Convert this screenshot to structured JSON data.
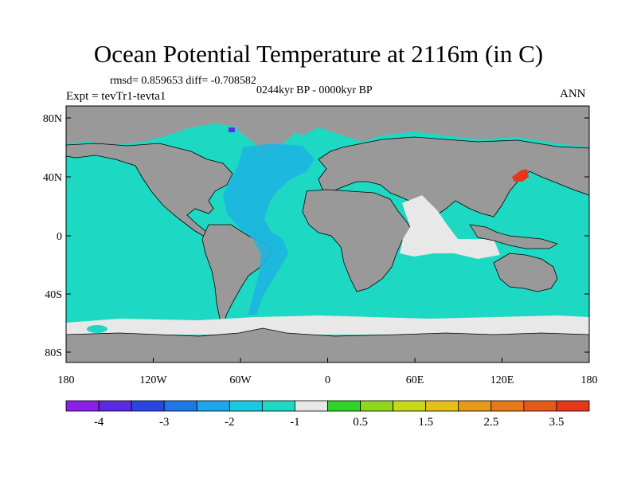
{
  "title": "Ocean Potential Temperature at 2116m (in C)",
  "stats": "rmsd= 0.859653  diff= -0.708582",
  "period": "0244kyr BP - 0000kyr BP",
  "experiment": "Expt = tevTr1-tevta1",
  "season": "ANN",
  "lat_labels": [
    "80N",
    "40N",
    "0",
    "40S",
    "80S"
  ],
  "lon_labels": [
    "180",
    "120W",
    "60W",
    "0",
    "60E",
    "120E",
    "180"
  ],
  "colorbar": {
    "colors": [
      "#8a1fe8",
      "#5a2ae0",
      "#2b45e0",
      "#1f78e8",
      "#1ea6ec",
      "#1bc8e3",
      "#1dd8c2",
      "#e8e8e8",
      "#2fd42a",
      "#8fd61c",
      "#c8d81b",
      "#e6c01a",
      "#e69a1a",
      "#e67a1a",
      "#e65a1a",
      "#e3381a"
    ],
    "labels": [
      "-4",
      "-3",
      "-2",
      "-1",
      "0.5",
      "1.5",
      "2.5",
      "3.5"
    ]
  },
  "map_colors": {
    "land": "#999999",
    "ocean": "#1dd8c2",
    "near_zero": "#e8e8e8",
    "atlantic_anomaly": "#1eb5e0",
    "warm": "#e3381a",
    "coast": "#000000"
  }
}
